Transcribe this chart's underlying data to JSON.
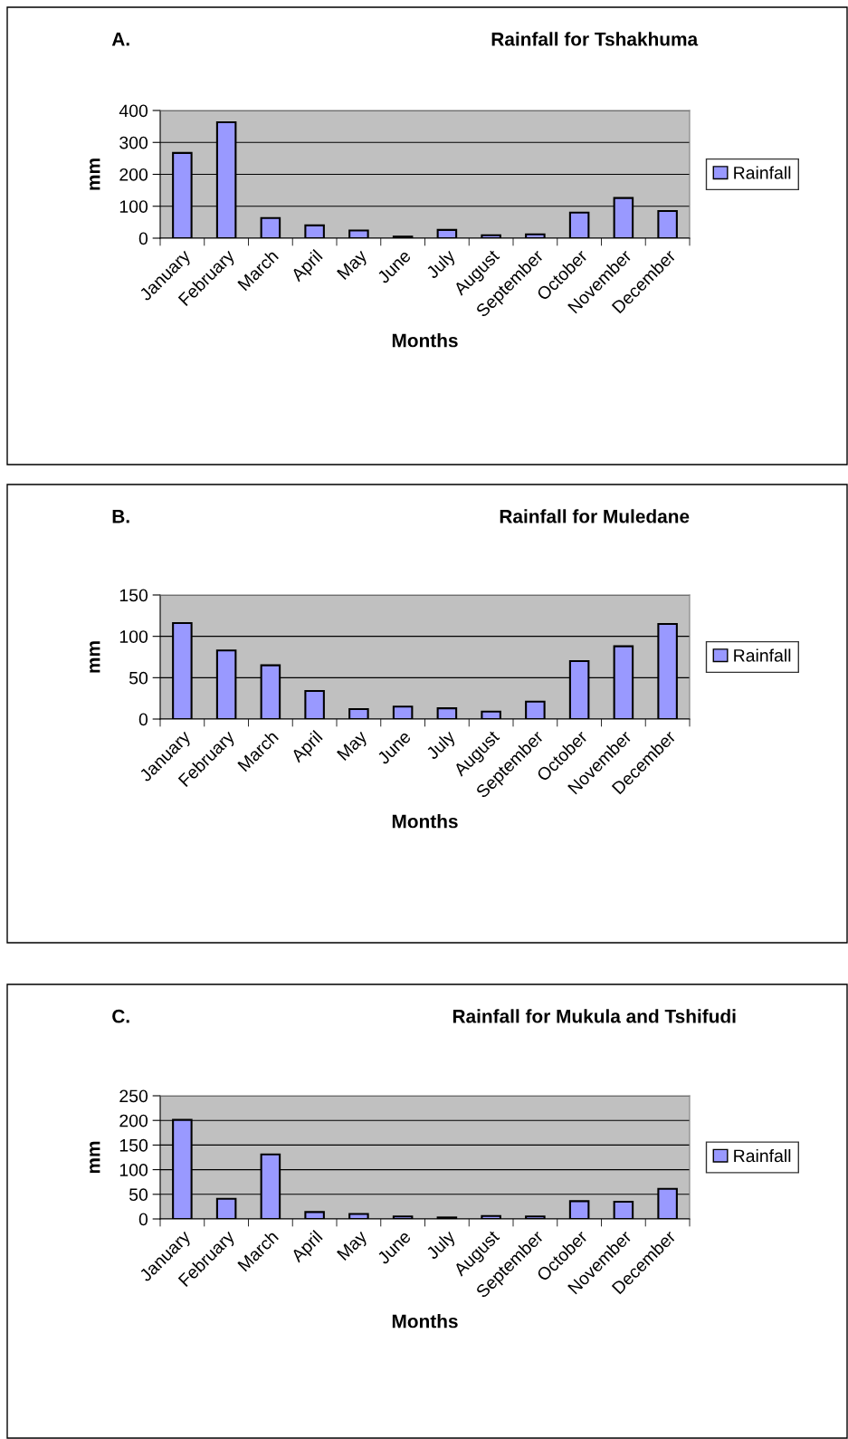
{
  "chart_data": [
    {
      "type": "bar",
      "title": "Rainfall for Tshakhuma",
      "annotations": [
        "A."
      ],
      "xlabel": "Months",
      "ylabel": "mm",
      "categories": [
        "January",
        "February",
        "March",
        "April",
        "May",
        "June",
        "July",
        "August",
        "September",
        "October",
        "November",
        "December"
      ],
      "series": [
        {
          "name": "Rainfall",
          "color": "#9999ff",
          "values": [
            267,
            363,
            63,
            40,
            24,
            5,
            26,
            9,
            12,
            80,
            126,
            85
          ]
        }
      ],
      "ylim": [
        0,
        400
      ],
      "yticks": [
        0,
        100,
        200,
        300,
        400
      ],
      "grid": "y",
      "legend": "right"
    },
    {
      "type": "bar",
      "title": "Rainfall for Muledane",
      "annotations": [
        "B."
      ],
      "xlabel": "Months",
      "ylabel": "mm",
      "categories": [
        "January",
        "February",
        "March",
        "April",
        "May",
        "June",
        "July",
        "August",
        "September",
        "October",
        "November",
        "December"
      ],
      "series": [
        {
          "name": "Rainfall",
          "color": "#9999ff",
          "values": [
            116,
            83,
            65,
            34,
            12,
            15,
            13,
            9,
            21,
            70,
            88,
            115
          ]
        }
      ],
      "ylim": [
        0,
        150
      ],
      "yticks": [
        0,
        50,
        100,
        150
      ],
      "grid": "y",
      "legend": "right"
    },
    {
      "type": "bar",
      "title": "Rainfall for Mukula and Tshifudi",
      "annotations": [
        "C."
      ],
      "xlabel": "Months",
      "ylabel": "mm",
      "categories": [
        "January",
        "February",
        "March",
        "April",
        "May",
        "June",
        "July",
        "August",
        "September",
        "October",
        "November",
        "December"
      ],
      "series": [
        {
          "name": "Rainfall",
          "color": "#9999ff",
          "values": [
            201,
            41,
            131,
            14,
            10,
            5,
            3,
            6,
            5,
            36,
            35,
            61
          ]
        }
      ],
      "ylim": [
        0,
        250
      ],
      "yticks": [
        0,
        50,
        100,
        150,
        200,
        250
      ],
      "grid": "y",
      "legend": "right"
    }
  ]
}
